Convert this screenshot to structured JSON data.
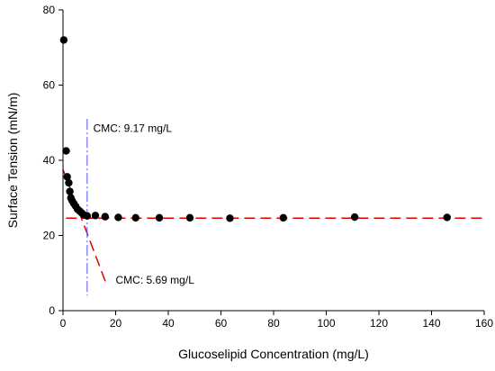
{
  "chart_data": {
    "type": "scatter",
    "title": "",
    "xlabel": "Glucoselipid Concentration (mg/L)",
    "ylabel": "Surface Tension (mN/m)",
    "xlim": [
      0,
      160
    ],
    "ylim": [
      0,
      80
    ],
    "xticks": [
      0,
      20,
      40,
      60,
      80,
      100,
      120,
      140,
      160
    ],
    "yticks": [
      0,
      20,
      40,
      60,
      80
    ],
    "grid": false,
    "legend": "none",
    "marker_color": "#000000",
    "series": [
      {
        "x": [
          0.3,
          1.2,
          1.6,
          2.2,
          2.6,
          3.0,
          3.5,
          4.1,
          4.8,
          5.5,
          6.3,
          7.1,
          7.9,
          9.2,
          12.3,
          16.0,
          21.0,
          27.6,
          36.6,
          48.2,
          63.4,
          83.7,
          110.8,
          145.9
        ],
        "y": [
          72.0,
          42.5,
          35.6,
          34.0,
          31.7,
          30.0,
          29.2,
          28.5,
          27.8,
          27.0,
          26.5,
          26.0,
          25.5,
          25.2,
          25.3,
          25.0,
          24.8,
          24.7,
          24.7,
          24.7,
          24.6,
          24.7,
          24.9,
          24.8
        ]
      }
    ],
    "fit_lines": [
      {
        "x": [
          -5,
          160
        ],
        "y": [
          24.6,
          24.6
        ],
        "color": "#e00000",
        "style": "dashed"
      },
      {
        "x": [
          -5,
          16.5
        ],
        "y": [
          46.8,
          7.0
        ],
        "color": "#e00000",
        "style": "dashed"
      }
    ],
    "cmc_line": {
      "x": 9.17,
      "y": [
        4,
        51
      ],
      "color": "#5050ff",
      "style": "dash-dot"
    },
    "annotations": [
      {
        "id": "cmc1",
        "text": "CMC: 9.17 mg/L",
        "x": 11.5,
        "y": 47.5
      },
      {
        "id": "cmc2",
        "text": "CMC: 5.69 mg/L",
        "x": 20.0,
        "y": 7.2
      }
    ]
  }
}
